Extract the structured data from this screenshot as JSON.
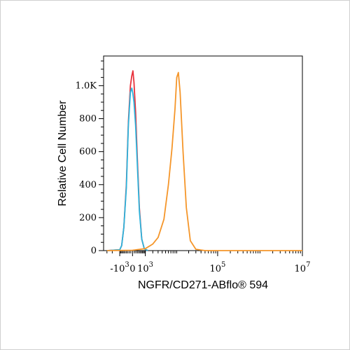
{
  "chart_data": {
    "type": "line",
    "title": "",
    "xlabel": "NGFR/CD271-ABflo® 594",
    "ylabel": "Relative Cell Number",
    "x_scale": "biexponential",
    "ylim": [
      0,
      1180
    ],
    "grid": false,
    "legend": "none",
    "y_ticks": [
      {
        "label": "0",
        "value": 0
      },
      {
        "label": "200",
        "value": 200
      },
      {
        "label": "400",
        "value": 400
      },
      {
        "label": "600",
        "value": 600
      },
      {
        "label": "800",
        "value": 800
      },
      {
        "label": "1.0K",
        "value": 1000
      }
    ],
    "x_ticks": [
      {
        "base": "-10",
        "exp": "3",
        "value": -1000
      },
      {
        "base": "0",
        "exp": "",
        "value": 0
      },
      {
        "base": "10",
        "exp": "3",
        "value": 1000
      },
      {
        "base": "10",
        "exp": "5",
        "value": 100000
      },
      {
        "base": "10",
        "exp": "7",
        "value": 10000000
      }
    ],
    "series": [
      {
        "color": "#e8323c",
        "points": [
          [
            -3000,
            0
          ],
          [
            -1000,
            5
          ],
          [
            -800,
            30
          ],
          [
            -600,
            140
          ],
          [
            -400,
            400
          ],
          [
            -250,
            780
          ],
          [
            -120,
            1000
          ],
          [
            -40,
            1060
          ],
          [
            20,
            1090
          ],
          [
            80,
            1020
          ],
          [
            180,
            840
          ],
          [
            300,
            560
          ],
          [
            450,
            260
          ],
          [
            650,
            70
          ],
          [
            900,
            10
          ],
          [
            1300,
            0
          ]
        ]
      },
      {
        "color": "#2bb5de",
        "points": [
          [
            -3000,
            0
          ],
          [
            -1000,
            5
          ],
          [
            -800,
            30
          ],
          [
            -600,
            140
          ],
          [
            -400,
            380
          ],
          [
            -250,
            760
          ],
          [
            -120,
            960
          ],
          [
            -40,
            985
          ],
          [
            20,
            950
          ],
          [
            80,
            900
          ],
          [
            180,
            760
          ],
          [
            300,
            520
          ],
          [
            450,
            240
          ],
          [
            650,
            70
          ],
          [
            900,
            10
          ],
          [
            1300,
            0
          ]
        ]
      },
      {
        "color": "#f5962a",
        "points": [
          [
            -3000,
            0
          ],
          [
            0,
            2
          ],
          [
            1000,
            12
          ],
          [
            2000,
            40
          ],
          [
            3000,
            80
          ],
          [
            4500,
            190
          ],
          [
            6000,
            400
          ],
          [
            7500,
            620
          ],
          [
            9000,
            860
          ],
          [
            10000,
            1050
          ],
          [
            11000,
            1080
          ],
          [
            12200,
            960
          ],
          [
            14500,
            600
          ],
          [
            17500,
            260
          ],
          [
            22000,
            60
          ],
          [
            30000,
            8
          ],
          [
            50000,
            0
          ],
          [
            10000000,
            0
          ]
        ]
      }
    ]
  }
}
